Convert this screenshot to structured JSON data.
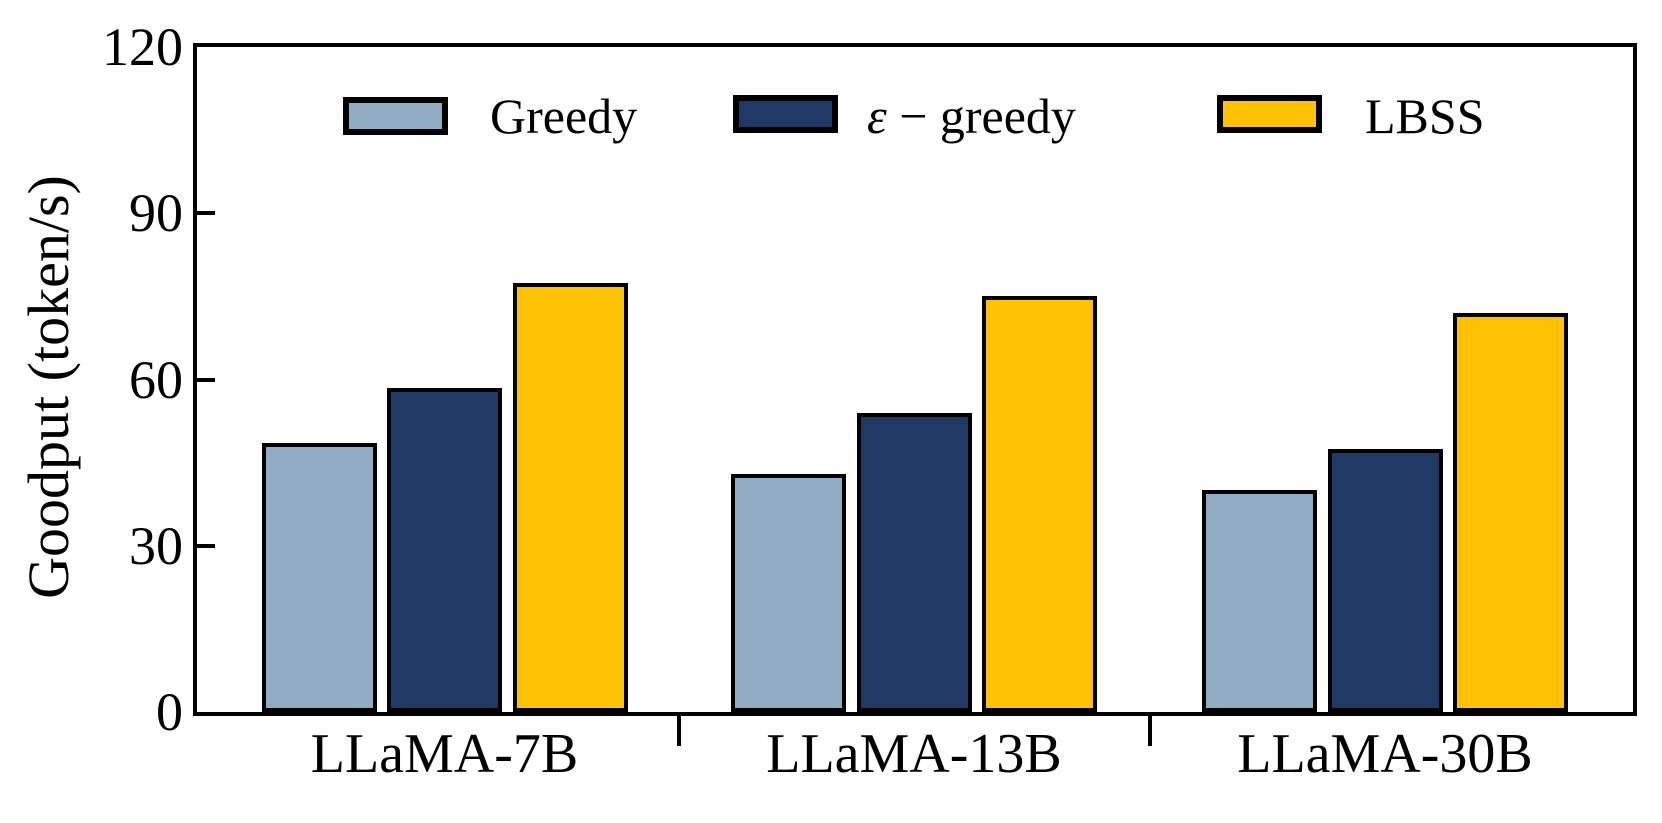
{
  "chart_data": {
    "type": "bar",
    "title": "",
    "ylabel": "Goodput (token/s)",
    "xlabel": "",
    "categories": [
      "LLaMA-7B",
      "LLaMA-13B",
      "LLaMA-30B"
    ],
    "series": [
      {
        "name": "Greedy",
        "color": "#91abc2",
        "values": [
          48.5,
          43,
          40
        ]
      },
      {
        "name": "ε − greedy",
        "color": "#1f3864",
        "values": [
          58.5,
          54,
          47.5
        ]
      },
      {
        "name": "LBSS",
        "color": "#ffc103",
        "values": [
          77.5,
          75,
          72
        ]
      }
    ],
    "ylim": [
      0,
      120
    ],
    "yticks": [
      0,
      30,
      60,
      90,
      120
    ],
    "grid": false,
    "legend_position": "top-inside",
    "bar_edge_color": "#000000",
    "background": "#ffffff"
  }
}
